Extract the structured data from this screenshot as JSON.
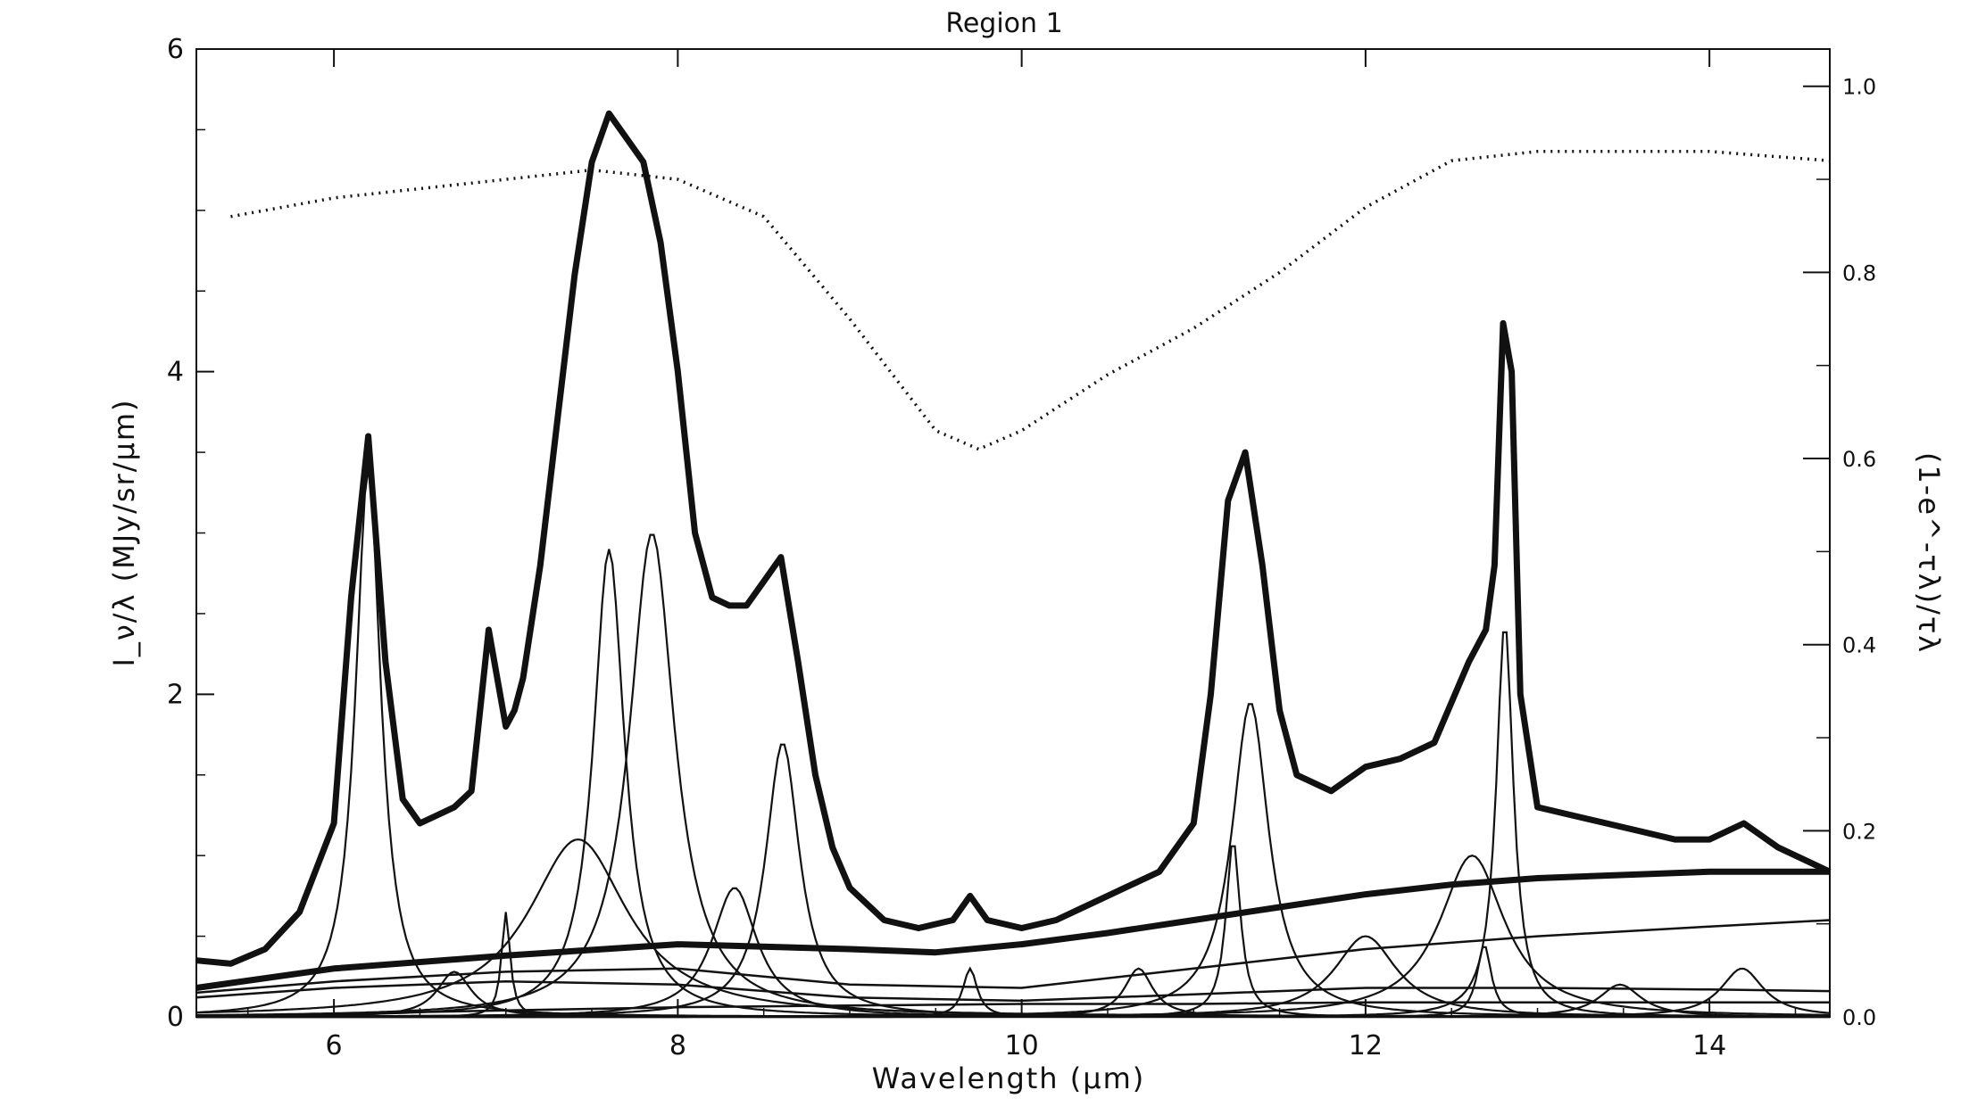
{
  "chart_data": {
    "type": "line",
    "title": "Region 1",
    "xlabel": "Wavelength (μm)",
    "ylabel": "I_ν/λ (MJy/sr/μm)",
    "ylabel_right": "(1-e^-τλ)/τλ",
    "xlim": [
      5.2,
      14.7
    ],
    "ylim": [
      0,
      6
    ],
    "ylim_right": [
      0,
      1.04
    ],
    "x_ticks": [
      6,
      8,
      10,
      12,
      14
    ],
    "y_ticks": [
      0,
      2,
      4,
      6
    ],
    "y_ticks_right": [
      "0.0",
      "0.2",
      "0.4",
      "0.6",
      "0.8",
      "1.0"
    ],
    "grid": false,
    "legend": "none",
    "colors": {
      "ink": "#111111",
      "background": "#ffffff"
    },
    "series": [
      {
        "role": "total-fit",
        "style": "thick-solid",
        "x": [
          5.2,
          5.4,
          5.6,
          5.8,
          6.0,
          6.1,
          6.2,
          6.3,
          6.4,
          6.5,
          6.6,
          6.7,
          6.8,
          6.9,
          6.95,
          7.0,
          7.05,
          7.1,
          7.2,
          7.3,
          7.4,
          7.5,
          7.6,
          7.7,
          7.8,
          7.9,
          8.0,
          8.1,
          8.2,
          8.3,
          8.4,
          8.5,
          8.6,
          8.7,
          8.8,
          8.9,
          9.0,
          9.2,
          9.4,
          9.6,
          9.7,
          9.8,
          10.0,
          10.2,
          10.4,
          10.6,
          10.8,
          11.0,
          11.1,
          11.2,
          11.3,
          11.4,
          11.5,
          11.6,
          11.8,
          12.0,
          12.2,
          12.4,
          12.6,
          12.7,
          12.75,
          12.8,
          12.85,
          12.9,
          13.0,
          13.2,
          13.4,
          13.6,
          13.8,
          14.0,
          14.2,
          14.4,
          14.6,
          14.7
        ],
        "y": [
          0.35,
          0.33,
          0.42,
          0.65,
          1.2,
          2.6,
          3.6,
          2.2,
          1.35,
          1.2,
          1.25,
          1.3,
          1.4,
          2.4,
          2.1,
          1.8,
          1.9,
          2.1,
          2.8,
          3.7,
          4.6,
          5.3,
          5.6,
          5.45,
          5.3,
          4.8,
          4.0,
          3.0,
          2.6,
          2.55,
          2.55,
          2.7,
          2.85,
          2.2,
          1.5,
          1.05,
          0.8,
          0.6,
          0.55,
          0.6,
          0.75,
          0.6,
          0.55,
          0.6,
          0.7,
          0.8,
          0.9,
          1.2,
          2.0,
          3.2,
          3.5,
          2.8,
          1.9,
          1.5,
          1.4,
          1.55,
          1.6,
          1.7,
          2.2,
          2.4,
          2.8,
          4.3,
          4.0,
          2.0,
          1.3,
          1.25,
          1.2,
          1.15,
          1.1,
          1.1,
          1.2,
          1.05,
          0.95,
          0.9
        ]
      },
      {
        "role": "continuum",
        "style": "thick-solid",
        "x": [
          5.2,
          6.0,
          7.0,
          8.0,
          9.0,
          9.5,
          10.0,
          10.5,
          11.0,
          11.5,
          12.0,
          12.5,
          13.0,
          13.5,
          14.0,
          14.7
        ],
        "y": [
          0.18,
          0.3,
          0.38,
          0.45,
          0.42,
          0.4,
          0.45,
          0.52,
          0.6,
          0.68,
          0.76,
          0.82,
          0.86,
          0.88,
          0.9,
          0.9
        ]
      },
      {
        "role": "continuum-component",
        "style": "thin-solid",
        "x": [
          5.2,
          6.0,
          7.0,
          8.0,
          9.0,
          10.0,
          11.0,
          12.0,
          13.0,
          14.0,
          14.7
        ],
        "y": [
          0.15,
          0.22,
          0.28,
          0.3,
          0.2,
          0.18,
          0.3,
          0.42,
          0.5,
          0.56,
          0.6
        ]
      },
      {
        "role": "continuum-component",
        "style": "thin-solid",
        "x": [
          5.2,
          6.0,
          7.0,
          8.0,
          9.0,
          10.0,
          11.0,
          12.0,
          13.0,
          14.0,
          14.7
        ],
        "y": [
          0.12,
          0.18,
          0.22,
          0.2,
          0.12,
          0.1,
          0.14,
          0.18,
          0.18,
          0.17,
          0.16
        ]
      },
      {
        "role": "continuum-component",
        "style": "thin-solid",
        "x": [
          5.2,
          6.0,
          7.0,
          8.0,
          9.0,
          10.0,
          11.0,
          12.0,
          13.0,
          14.0,
          14.7
        ],
        "y": [
          0.0,
          0.02,
          0.04,
          0.06,
          0.07,
          0.08,
          0.08,
          0.09,
          0.09,
          0.09,
          0.09
        ]
      },
      {
        "role": "extinction-right-axis",
        "style": "dotted",
        "axis": "right",
        "x": [
          5.4,
          6.0,
          7.0,
          7.5,
          8.0,
          8.5,
          9.0,
          9.5,
          9.75,
          10.0,
          10.5,
          11.0,
          11.5,
          12.0,
          12.5,
          13.0,
          13.5,
          14.0,
          14.7
        ],
        "y": [
          0.86,
          0.88,
          0.9,
          0.91,
          0.9,
          0.86,
          0.75,
          0.63,
          0.61,
          0.63,
          0.69,
          0.74,
          0.8,
          0.87,
          0.92,
          0.93,
          0.93,
          0.93,
          0.92
        ]
      }
    ],
    "components": [
      {
        "center": 6.2,
        "peak": 3.4,
        "width": 0.09
      },
      {
        "center": 6.7,
        "peak": 0.28,
        "width": 0.12
      },
      {
        "center": 7.0,
        "peak": 0.65,
        "width": 0.03
      },
      {
        "center": 7.42,
        "peak": 1.1,
        "width": 0.35
      },
      {
        "center": 7.6,
        "peak": 2.9,
        "width": 0.11
      },
      {
        "center": 7.85,
        "peak": 3.0,
        "width": 0.16
      },
      {
        "center": 8.33,
        "peak": 0.8,
        "width": 0.16
      },
      {
        "center": 8.61,
        "peak": 1.7,
        "width": 0.12
      },
      {
        "center": 9.7,
        "peak": 0.3,
        "width": 0.05
      },
      {
        "center": 10.68,
        "peak": 0.3,
        "width": 0.1
      },
      {
        "center": 11.23,
        "peak": 1.1,
        "width": 0.05
      },
      {
        "center": 11.33,
        "peak": 1.95,
        "width": 0.13
      },
      {
        "center": 12.0,
        "peak": 0.5,
        "width": 0.22
      },
      {
        "center": 12.62,
        "peak": 1.0,
        "width": 0.23
      },
      {
        "center": 12.69,
        "peak": 0.45,
        "width": 0.05
      },
      {
        "center": 12.81,
        "peak": 2.45,
        "width": 0.06
      },
      {
        "center": 13.48,
        "peak": 0.2,
        "width": 0.15
      },
      {
        "center": 14.19,
        "peak": 0.3,
        "width": 0.15
      }
    ]
  }
}
